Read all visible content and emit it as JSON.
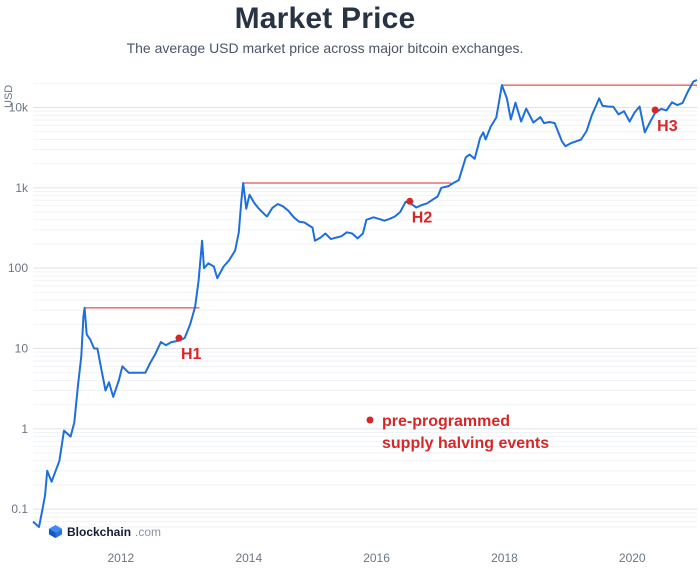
{
  "header": {
    "title": "Market Price",
    "subtitle": "The average USD market price across major bitcoin exchanges."
  },
  "logo": {
    "name": "Blockchain",
    "suffix": ".com",
    "icon": "blockchain-cube-icon"
  },
  "colors": {
    "line": "#1e6fd9",
    "annotation": "#d62728",
    "grid": "#e4e7ec",
    "text": "#283343"
  },
  "chart_data": {
    "type": "line",
    "title": "Market Price",
    "subtitle": "The average USD market price across major bitcoin exchanges.",
    "ylabel": "USD",
    "xlabel": "",
    "yscale": "log",
    "ylim": [
      0.06,
      22000
    ],
    "xlim": [
      "2010-08-17",
      "2021-01-05"
    ],
    "grid": true,
    "yticks": [
      {
        "v": 0.1,
        "label": "0.1"
      },
      {
        "v": 1,
        "label": "1"
      },
      {
        "v": 10,
        "label": "10"
      },
      {
        "v": 100,
        "label": "100"
      },
      {
        "v": 1000,
        "label": "1k"
      },
      {
        "v": 10000,
        "label": "10k"
      }
    ],
    "xticks": [
      {
        "x": "2012-01-01",
        "label": "2012"
      },
      {
        "x": "2014-01-01",
        "label": "2014"
      },
      {
        "x": "2016-01-01",
        "label": "2016"
      },
      {
        "x": "2018-01-01",
        "label": "2018"
      },
      {
        "x": "2020-01-01",
        "label": "2020"
      }
    ],
    "series": [
      {
        "x": [
          "2010-08-17",
          "2010-09-20",
          "2010-10-10",
          "2010-10-25",
          "2010-11-06",
          "2010-12-01",
          "2011-01-15",
          "2011-02-10",
          "2011-03-20",
          "2011-04-10",
          "2011-05-01",
          "2011-05-20",
          "2011-06-01",
          "2011-06-08",
          "2011-06-20",
          "2011-07-10",
          "2011-08-01",
          "2011-08-20",
          "2011-09-15",
          "2011-10-05",
          "2011-10-25",
          "2011-11-18",
          "2011-12-20",
          "2012-01-10",
          "2012-02-15",
          "2012-03-15",
          "2012-04-15",
          "2012-05-20",
          "2012-06-15",
          "2012-07-15",
          "2012-08-17",
          "2012-09-15",
          "2012-10-15",
          "2012-11-28",
          "2012-12-31",
          "2013-01-31",
          "2013-02-28",
          "2013-03-20",
          "2013-04-09",
          "2013-04-20",
          "2013-05-15",
          "2013-06-15",
          "2013-07-05",
          "2013-08-10",
          "2013-09-10",
          "2013-10-15",
          "2013-11-05",
          "2013-11-20",
          "2013-11-30",
          "2013-12-18",
          "2014-01-05",
          "2014-02-01",
          "2014-02-28",
          "2014-03-31",
          "2014-04-15",
          "2014-05-15",
          "2014-06-15",
          "2014-07-15",
          "2014-08-15",
          "2014-09-15",
          "2014-10-15",
          "2014-11-15",
          "2014-12-31",
          "2015-01-14",
          "2015-02-15",
          "2015-03-15",
          "2015-04-15",
          "2015-05-15",
          "2015-06-15",
          "2015-07-15",
          "2015-08-15",
          "2015-09-15",
          "2015-10-15",
          "2015-11-04",
          "2015-12-15",
          "2016-01-15",
          "2016-02-15",
          "2016-03-15",
          "2016-04-15",
          "2016-05-15",
          "2016-06-15",
          "2016-07-09",
          "2016-08-15",
          "2016-09-15",
          "2016-10-15",
          "2016-11-15",
          "2016-12-15",
          "2017-01-05",
          "2017-02-15",
          "2017-03-15",
          "2017-04-15",
          "2017-05-25",
          "2017-06-15",
          "2017-07-15",
          "2017-08-15",
          "2017-09-02",
          "2017-09-15",
          "2017-10-15",
          "2017-11-15",
          "2017-12-17",
          "2018-01-15",
          "2018-02-06",
          "2018-03-05",
          "2018-04-06",
          "2018-05-05",
          "2018-06-15",
          "2018-07-25",
          "2018-08-15",
          "2018-09-15",
          "2018-10-15",
          "2018-11-25",
          "2018-12-15",
          "2019-01-15",
          "2019-02-15",
          "2019-03-15",
          "2019-04-15",
          "2019-05-15",
          "2019-06-26",
          "2019-07-15",
          "2019-08-15",
          "2019-09-15",
          "2019-10-15",
          "2019-11-15",
          "2019-12-17",
          "2020-01-15",
          "2020-02-12",
          "2020-03-13",
          "2020-04-15",
          "2020-05-11",
          "2020-06-15",
          "2020-07-15",
          "2020-08-15",
          "2020-09-15",
          "2020-10-15",
          "2020-11-15",
          "2020-12-15",
          "2021-01-05"
        ],
        "values": [
          0.07,
          0.06,
          0.1,
          0.15,
          0.3,
          0.22,
          0.4,
          0.95,
          0.8,
          1.2,
          3.5,
          8,
          25,
          32,
          15,
          13,
          10,
          10,
          5,
          3,
          3.8,
          2.5,
          4,
          6,
          5,
          5,
          5,
          5,
          6.5,
          8.5,
          12,
          11,
          12,
          12.5,
          13.5,
          20,
          33,
          70,
          220,
          100,
          115,
          105,
          75,
          105,
          125,
          165,
          280,
          700,
          1150,
          550,
          820,
          650,
          550,
          470,
          440,
          560,
          630,
          590,
          520,
          430,
          380,
          370,
          320,
          220,
          240,
          270,
          230,
          240,
          250,
          280,
          270,
          235,
          270,
          400,
          430,
          410,
          390,
          410,
          440,
          500,
          670,
          650,
          570,
          610,
          640,
          710,
          780,
          1000,
          1050,
          1150,
          1250,
          2400,
          2600,
          2300,
          4200,
          4900,
          4000,
          5800,
          7500,
          19000,
          13000,
          7100,
          11500,
          6700,
          9700,
          6500,
          7600,
          6400,
          6600,
          6400,
          3800,
          3300,
          3600,
          3800,
          4000,
          5100,
          8000,
          13000,
          10500,
          10300,
          10200,
          8200,
          9000,
          6700,
          8700,
          10300,
          4900,
          6800,
          8600,
          9600,
          9200,
          11600,
          10700,
          11400,
          16000,
          21000,
          22000
        ]
      }
    ],
    "reference_lines": [
      {
        "from": "2011-06-08",
        "to": "2013-03-25",
        "value": 32
      },
      {
        "from": "2013-11-30",
        "to": "2017-03-01",
        "value": 1150
      },
      {
        "from": "2017-12-17",
        "to": "2021-01-05",
        "value": 19000
      }
    ],
    "annotations": [
      {
        "x": "2012-11-28",
        "y": 13.5,
        "label": "H1"
      },
      {
        "x": "2016-07-09",
        "y": 680,
        "label": "H2"
      },
      {
        "x": "2020-05-11",
        "y": 9300,
        "label": "H3"
      }
    ],
    "legend": {
      "label_line1": "pre-programmed",
      "label_line2": "supply halving events",
      "placement": "center-bottom"
    }
  }
}
